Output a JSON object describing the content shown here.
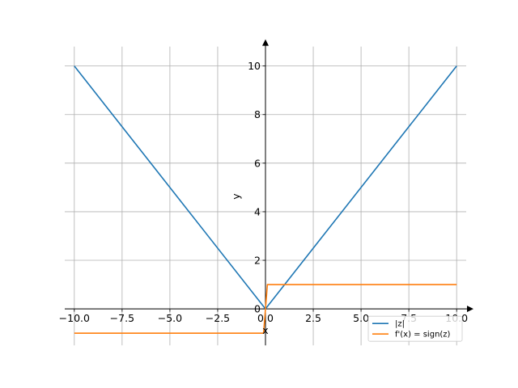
{
  "chart_data": {
    "type": "line",
    "title": "",
    "xlabel": "x",
    "ylabel": "y",
    "xlim": [
      -10.5,
      10.5
    ],
    "ylim": [
      -1.5,
      10.8
    ],
    "grid": true,
    "legend_position": "lower-right",
    "x_ticks": [
      -10.0,
      -7.5,
      -5.0,
      -2.5,
      0.0,
      2.5,
      5.0,
      7.5,
      10.0
    ],
    "x_tick_labels": [
      "−10.0",
      "−7.5",
      "−5.0",
      "−2.5",
      "0.0",
      "2.5",
      "5.0",
      "7.5",
      "10.0"
    ],
    "y_ticks": [
      0,
      2,
      4,
      6,
      8,
      10
    ],
    "y_tick_labels": [
      "0",
      "2",
      "4",
      "6",
      "8",
      "10"
    ],
    "series": [
      {
        "name": "|z|",
        "color": "#1f77b4",
        "x": [
          -10,
          0,
          10
        ],
        "y": [
          10,
          0,
          10
        ]
      },
      {
        "name": "f'(x) = sign(z)",
        "color": "#ff7f0e",
        "x": [
          -10,
          -0.1,
          0.1,
          10
        ],
        "y": [
          -1,
          -1,
          1,
          1
        ]
      }
    ]
  }
}
